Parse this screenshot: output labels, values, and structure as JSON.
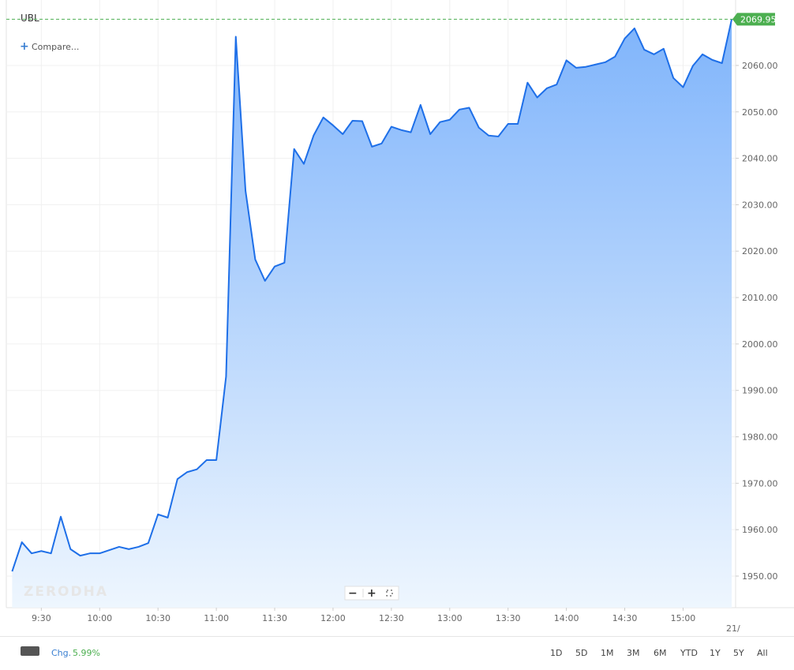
{
  "chart_data": {
    "type": "area",
    "title": "UBL",
    "compare_label": "Compare...",
    "watermark": "ZERODHA",
    "x": [
      "9:15",
      "9:20",
      "9:25",
      "9:30",
      "9:35",
      "9:40",
      "9:45",
      "9:50",
      "9:55",
      "10:00",
      "10:05",
      "10:10",
      "10:15",
      "10:20",
      "10:25",
      "10:30",
      "10:35",
      "10:40",
      "10:45",
      "10:50",
      "10:55",
      "11:00",
      "11:05",
      "11:10",
      "11:15",
      "11:20",
      "11:25",
      "11:30",
      "11:35",
      "11:40",
      "11:45",
      "11:50",
      "11:55",
      "12:00",
      "12:05",
      "12:10",
      "12:15",
      "12:20",
      "12:25",
      "12:30",
      "12:35",
      "12:40",
      "12:45",
      "12:50",
      "12:55",
      "13:00",
      "13:05",
      "13:10",
      "13:15",
      "13:20",
      "13:25",
      "13:30",
      "13:35",
      "13:40",
      "13:45",
      "13:50",
      "13:55",
      "14:00",
      "14:05",
      "14:10",
      "14:15",
      "14:20",
      "14:25",
      "14:30",
      "14:35",
      "14:40",
      "14:45",
      "14:50",
      "14:55",
      "15:00",
      "15:05",
      "15:10",
      "15:15",
      "15:20",
      "15:25"
    ],
    "xlim": [
      "9:12",
      "15:27"
    ],
    "xticks": [
      "9:30",
      "10:00",
      "10:30",
      "11:00",
      "11:30",
      "12:00",
      "12:30",
      "13:00",
      "13:30",
      "14:00",
      "14:30",
      "15:00"
    ],
    "x_end_label": "21/",
    "ylim": [
      1943.2,
      2074.1
    ],
    "yticks": [
      {
        "value": 1950,
        "label": "1950.00"
      },
      {
        "value": 1960,
        "label": "1960.00"
      },
      {
        "value": 1970,
        "label": "1970.00"
      },
      {
        "value": 1980,
        "label": "1980.00"
      },
      {
        "value": 1990,
        "label": "1990.00"
      },
      {
        "value": 2000,
        "label": "2000.00"
      },
      {
        "value": 2010,
        "label": "2010.00"
      },
      {
        "value": 2020,
        "label": "2020.00"
      },
      {
        "value": 2030,
        "label": "2030.00"
      },
      {
        "value": 2040,
        "label": "2040.00"
      },
      {
        "value": 2050,
        "label": "2050.00"
      },
      {
        "value": 2060,
        "label": "2060.00"
      }
    ],
    "grid": true,
    "last_price_color": "#4caf50",
    "series": [
      {
        "color": "#1e6fe8",
        "values": [
          1951,
          1957.3,
          1954.9,
          1955.4,
          1954.9,
          1962.8,
          1955.8,
          1954.4,
          1954.9,
          1954.9,
          1955.6,
          1956.3,
          1955.8,
          1956.3,
          1957.1,
          1963.3,
          1962.6,
          1970.9,
          1972.4,
          1973.0,
          1975.0,
          1975.0,
          1993.0,
          2066.2,
          2033.0,
          2018.2,
          2013.6,
          2016.7,
          2017.5,
          2042.0,
          2038.8,
          2044.9,
          2048.8,
          2047.1,
          2045.2,
          2048.1,
          2048.0,
          2042.5,
          2043.2,
          2046.8,
          2046.1,
          2045.6,
          2051.5,
          2045.2,
          2047.8,
          2048.3,
          2050.5,
          2050.9,
          2046.6,
          2044.9,
          2044.7,
          2047.4,
          2047.4,
          2056.3,
          2053.1,
          2055.1,
          2055.9,
          2061.1,
          2059.5,
          2059.7,
          2060.2,
          2060.7,
          2061.9,
          2065.8,
          2068.0,
          2063.4,
          2062.4,
          2063.6,
          2057.3,
          2055.3,
          2059.9,
          2062.4,
          2061.2,
          2060.5,
          2069.95
        ]
      }
    ]
  },
  "footer": {
    "change_label": "Chg.",
    "change": "5.99%",
    "ranges": [
      "1D",
      "5D",
      "1M",
      "3M",
      "6M",
      "YTD",
      "1Y",
      "5Y",
      "All"
    ]
  }
}
